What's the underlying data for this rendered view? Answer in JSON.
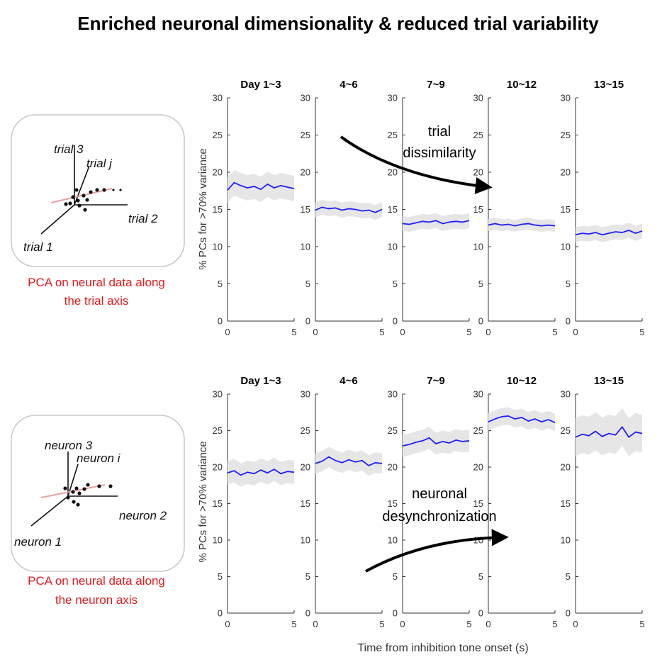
{
  "figure": {
    "title": "Enriched neuronal dimensionality & reduced trial variability",
    "xlabel": "Time from inhibition tone onset (s)",
    "ylabel": "% PCs for >70% variance"
  },
  "insets": [
    {
      "axes_labels": [
        "trial 3",
        "trial j",
        "trial 2",
        "trial 1"
      ],
      "caption": [
        "PCA on neural data along",
        "the trial axis"
      ]
    },
    {
      "axes_labels": [
        "neuron 3",
        "neuron i",
        "neuron 2",
        "neuron 1"
      ],
      "caption": [
        "PCA on neural data along",
        "the neuron axis"
      ]
    }
  ],
  "annotations": {
    "top_arrow": [
      "trial",
      "dissimilarity"
    ],
    "bottom_arrow": [
      "neuronal",
      "desynchronization"
    ]
  },
  "colors": {
    "line": "#1f1fff",
    "band": "#e6e6e6",
    "caption": "#e31a1c",
    "axis": "#333333"
  },
  "chart_data": [
    {
      "type": "line",
      "row": "trial axis",
      "panel_titles": [
        "Day 1~3",
        "4~6",
        "7~9",
        "10~12",
        "13~15"
      ],
      "xlim": [
        0,
        5
      ],
      "ylim": [
        0,
        30
      ],
      "xticks": [
        0,
        5
      ],
      "yticks": [
        0,
        5,
        10,
        15,
        20,
        25,
        30
      ],
      "x": [
        0,
        0.5,
        1,
        1.5,
        2,
        2.5,
        3,
        3.5,
        4,
        4.5,
        5
      ],
      "series": [
        {
          "values": [
            17.6,
            18.6,
            18.2,
            17.9,
            18.1,
            17.7,
            18.4,
            17.9,
            18.2,
            18.0,
            17.8
          ],
          "band": 1.7
        },
        {
          "values": [
            14.9,
            15.3,
            15.1,
            15.2,
            14.9,
            15.1,
            15.0,
            14.8,
            14.9,
            14.6,
            15.0
          ],
          "band": 1.0
        },
        {
          "values": [
            13.1,
            13.0,
            13.2,
            13.4,
            13.3,
            13.5,
            13.1,
            13.3,
            13.4,
            13.3,
            13.5
          ],
          "band": 1.0
        },
        {
          "values": [
            12.9,
            13.1,
            12.9,
            13.0,
            12.8,
            13.0,
            13.1,
            12.9,
            12.8,
            12.9,
            12.8
          ],
          "band": 0.8
        },
        {
          "values": [
            11.6,
            11.8,
            11.7,
            11.9,
            11.6,
            11.8,
            12.0,
            11.9,
            12.2,
            11.8,
            12.1
          ],
          "band": 1.0
        }
      ]
    },
    {
      "type": "line",
      "row": "neuron axis",
      "panel_titles": [
        "Day 1~3",
        "4~6",
        "7~9",
        "10~12",
        "13~15"
      ],
      "xlim": [
        0,
        5
      ],
      "ylim": [
        0,
        30
      ],
      "xticks": [
        0,
        5
      ],
      "yticks": [
        0,
        5,
        10,
        15,
        20,
        25,
        30
      ],
      "x": [
        0,
        0.5,
        1,
        1.5,
        2,
        2.5,
        3,
        3.5,
        4,
        4.5,
        5
      ],
      "series": [
        {
          "values": [
            19.2,
            19.5,
            18.9,
            19.3,
            19.1,
            19.6,
            19.2,
            19.7,
            19.1,
            19.4,
            19.3
          ],
          "band": 1.6
        },
        {
          "values": [
            20.5,
            20.8,
            21.4,
            20.9,
            20.6,
            21.0,
            20.7,
            20.9,
            20.2,
            20.6,
            20.5
          ],
          "band": 1.4
        },
        {
          "values": [
            22.9,
            23.1,
            23.4,
            23.6,
            24.0,
            23.2,
            23.5,
            23.3,
            23.7,
            23.5,
            23.6
          ],
          "band": 1.5
        },
        {
          "values": [
            26.2,
            26.6,
            26.9,
            27.0,
            26.6,
            26.8,
            26.3,
            26.6,
            26.2,
            26.5,
            26.1
          ],
          "band": 1.2
        },
        {
          "values": [
            24.1,
            24.5,
            24.3,
            24.9,
            24.2,
            24.6,
            24.4,
            25.5,
            24.1,
            24.8,
            24.6
          ],
          "band": 2.6
        }
      ]
    }
  ]
}
